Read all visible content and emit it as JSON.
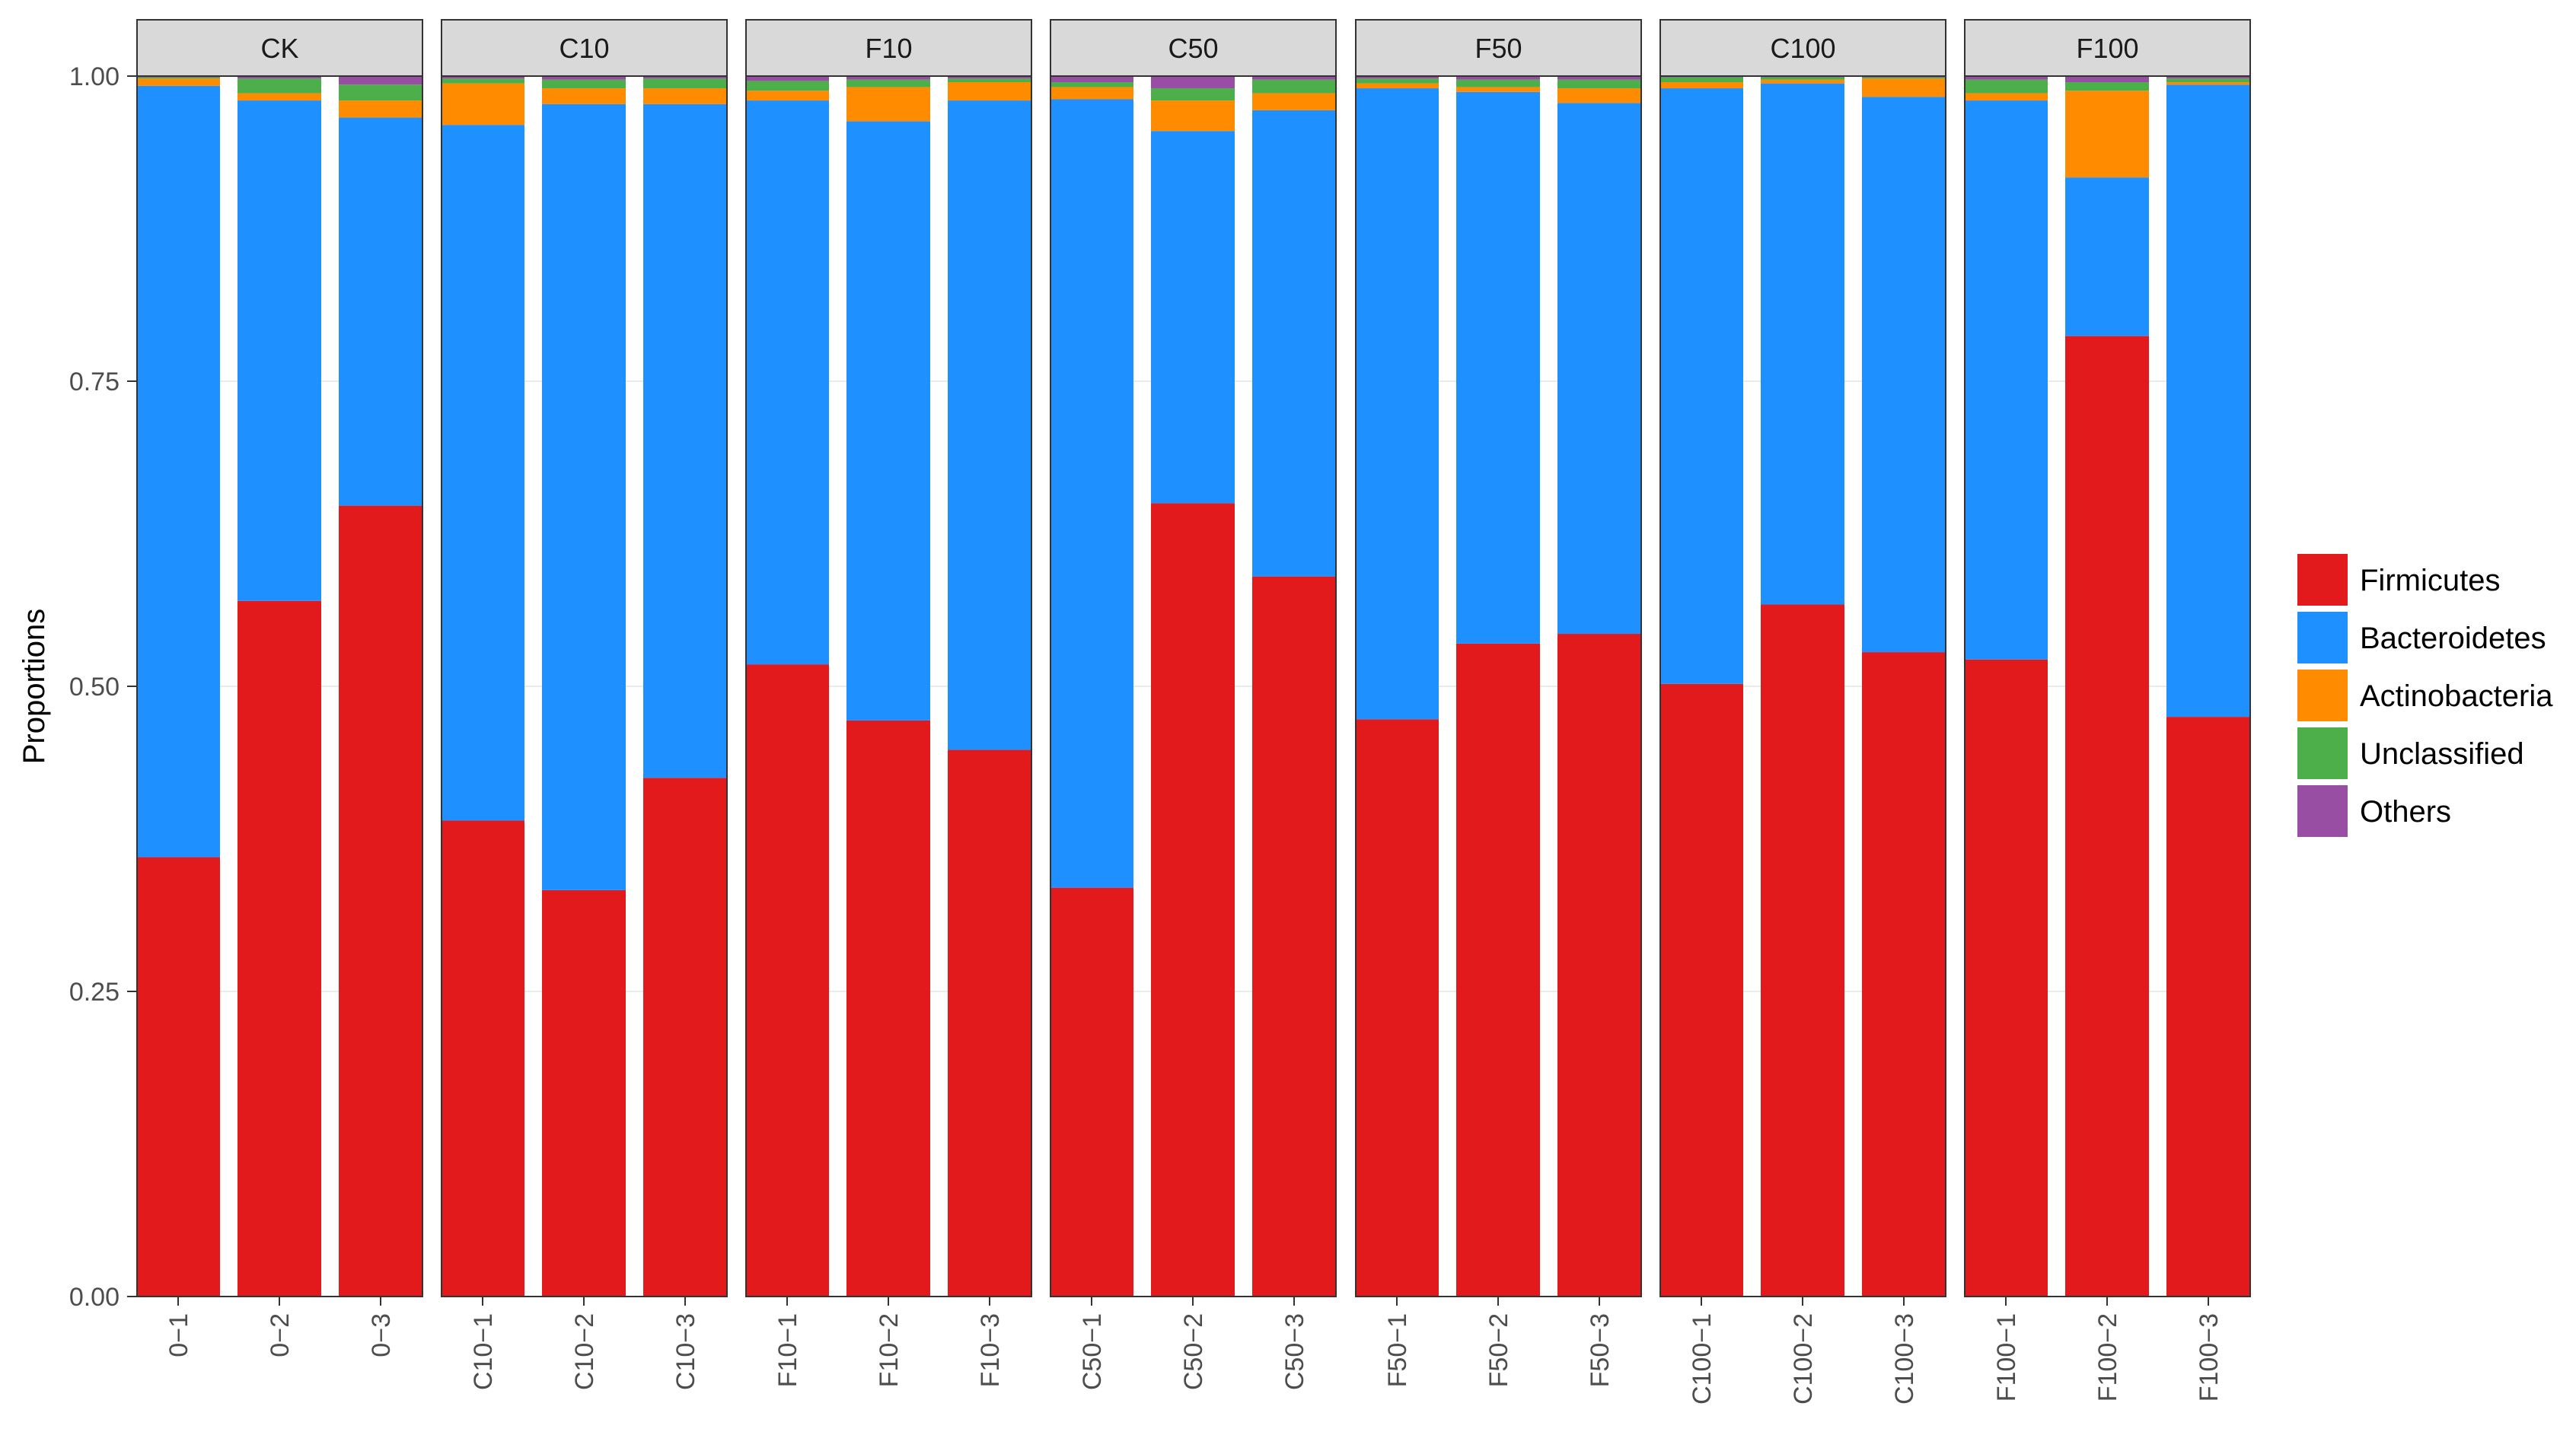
{
  "chart_data": {
    "type": "bar",
    "stacked": true,
    "ylabel": "Proportions",
    "ylim": [
      0,
      1
    ],
    "yticks": [
      "0.00",
      "0.25",
      "0.50",
      "0.75",
      "1.00"
    ],
    "ytick_values": [
      0,
      0.25,
      0.5,
      0.75,
      1.0
    ],
    "legend_position": "right",
    "series": [
      {
        "name": "Firmicutes",
        "color": "#E31A1C"
      },
      {
        "name": "Bacteroidetes",
        "color": "#1E90FF"
      },
      {
        "name": "Actinobacteria",
        "color": "#FF8C00"
      },
      {
        "name": "Unclassified",
        "color": "#4DAF4A"
      },
      {
        "name": "Others",
        "color": "#984EA3"
      }
    ],
    "facets": [
      {
        "label": "CK",
        "samples": [
          {
            "label": "0−1",
            "values": [
              0.36,
              0.632,
              0.006,
              0.001,
              0.001
            ]
          },
          {
            "label": "0−2",
            "values": [
              0.57,
              0.41,
              0.006,
              0.012,
              0.002
            ]
          },
          {
            "label": "0−3",
            "values": [
              0.648,
              0.318,
              0.014,
              0.013,
              0.007
            ]
          }
        ]
      },
      {
        "label": "C10",
        "samples": [
          {
            "label": "C10−1",
            "values": [
              0.39,
              0.57,
              0.034,
              0.004,
              0.002
            ]
          },
          {
            "label": "C10−2",
            "values": [
              0.333,
              0.644,
              0.013,
              0.007,
              0.003
            ]
          },
          {
            "label": "C10−3",
            "values": [
              0.425,
              0.552,
              0.013,
              0.008,
              0.002
            ]
          }
        ]
      },
      {
        "label": "F10",
        "samples": [
          {
            "label": "F10−1",
            "values": [
              0.518,
              0.462,
              0.008,
              0.008,
              0.004
            ]
          },
          {
            "label": "F10−2",
            "values": [
              0.472,
              0.491,
              0.028,
              0.006,
              0.003
            ]
          },
          {
            "label": "F10−3",
            "values": [
              0.448,
              0.532,
              0.015,
              0.003,
              0.002
            ]
          }
        ]
      },
      {
        "label": "C50",
        "samples": [
          {
            "label": "C50−1",
            "values": [
              0.335,
              0.646,
              0.01,
              0.004,
              0.005
            ]
          },
          {
            "label": "C50−2",
            "values": [
              0.65,
              0.305,
              0.025,
              0.01,
              0.01
            ]
          },
          {
            "label": "C50−3",
            "values": [
              0.59,
              0.382,
              0.014,
              0.011,
              0.003
            ]
          }
        ]
      },
      {
        "label": "F50",
        "samples": [
          {
            "label": "F50−1",
            "values": [
              0.473,
              0.517,
              0.004,
              0.004,
              0.002
            ]
          },
          {
            "label": "F50−2",
            "values": [
              0.535,
              0.452,
              0.004,
              0.006,
              0.003
            ]
          },
          {
            "label": "F50−3",
            "values": [
              0.543,
              0.435,
              0.012,
              0.007,
              0.003
            ]
          }
        ]
      },
      {
        "label": "C100",
        "samples": [
          {
            "label": "C100−1",
            "values": [
              0.502,
              0.488,
              0.005,
              0.004,
              0.001
            ]
          },
          {
            "label": "C100−2",
            "values": [
              0.567,
              0.427,
              0.003,
              0.002,
              0.001
            ]
          },
          {
            "label": "C100−3",
            "values": [
              0.528,
              0.455,
              0.015,
              0.001,
              0.001
            ]
          }
        ]
      },
      {
        "label": "F100",
        "samples": [
          {
            "label": "F100−1",
            "values": [
              0.522,
              0.458,
              0.006,
              0.011,
              0.003
            ]
          },
          {
            "label": "F100−2",
            "values": [
              0.787,
              0.13,
              0.071,
              0.007,
              0.005
            ]
          },
          {
            "label": "F100−3",
            "values": [
              0.475,
              0.518,
              0.002,
              0.003,
              0.002
            ]
          }
        ]
      }
    ]
  }
}
